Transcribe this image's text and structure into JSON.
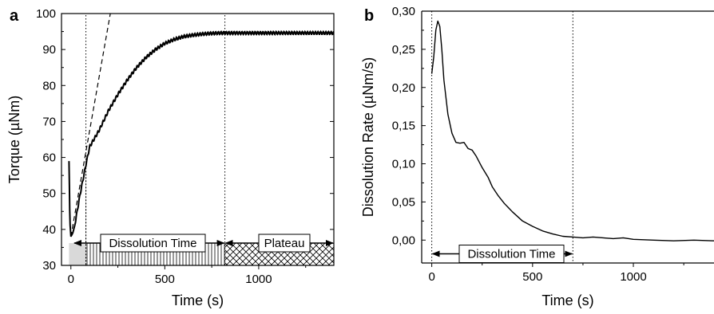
{
  "chart_data": [
    {
      "panel": "a",
      "type": "line",
      "xlabel": "Time (s)",
      "ylabel": "Torque (µNm)",
      "xlim": [
        -50,
        1400
      ],
      "ylim": [
        30,
        100
      ],
      "xticks": [
        0,
        500,
        1000
      ],
      "xtick_labels": [
        "0",
        "500",
        "1000"
      ],
      "yticks": [
        30,
        40,
        50,
        60,
        70,
        80,
        90,
        100
      ],
      "ytick_labels": [
        "30",
        "40",
        "50",
        "60",
        "70",
        "80",
        "90",
        "100"
      ],
      "series": [
        {
          "style": "solid",
          "x": [
            -10,
            -5,
            0,
            10,
            20,
            50,
            80,
            100,
            150,
            200,
            250,
            300,
            350,
            400,
            450,
            500,
            550,
            600,
            650,
            700,
            750,
            800,
            850,
            900,
            1000,
            1100,
            1200,
            1300,
            1400
          ],
          "y": [
            59,
            42,
            38,
            39,
            41,
            50,
            58,
            63,
            67.5,
            73,
            77.5,
            81.5,
            85,
            87.8,
            90,
            91.7,
            92.8,
            93.6,
            94,
            94.3,
            94.5,
            94.6,
            94.6,
            94.6,
            94.6,
            94.6,
            94.6,
            94.6,
            94.6
          ],
          "oscillation_amplitude": 0.4
        },
        {
          "style": "dashed",
          "x": [
            0,
            210
          ],
          "y": [
            38,
            100
          ]
        }
      ],
      "vlines": [
        80,
        820
      ],
      "annotations": [
        {
          "text": "Dissolution Time",
          "from": 0,
          "to": 820
        },
        {
          "text": "Plateau",
          "from": 820,
          "to": 1400
        }
      ]
    },
    {
      "panel": "b",
      "type": "line",
      "xlabel": "Time (s)",
      "ylabel": "Dissolution Rate (µNm/s)",
      "xlim": [
        -50,
        1400
      ],
      "ylim": [
        -0.03,
        0.3
      ],
      "xticks": [
        0,
        500,
        1000
      ],
      "xtick_labels": [
        "0",
        "500",
        "1000"
      ],
      "yticks": [
        0,
        0.05,
        0.1,
        0.15,
        0.2,
        0.25,
        0.3
      ],
      "ytick_labels": [
        "0,00",
        "0,05",
        "0,10",
        "0,15",
        "0,20",
        "0,25",
        "0,30"
      ],
      "series": [
        {
          "style": "solid",
          "x": [
            0,
            10,
            20,
            30,
            40,
            50,
            60,
            80,
            100,
            120,
            140,
            160,
            180,
            200,
            220,
            250,
            280,
            300,
            330,
            360,
            400,
            450,
            500,
            550,
            600,
            650,
            700,
            750,
            800,
            850,
            900,
            950,
            1000,
            1100,
            1200,
            1300,
            1400
          ],
          "y": [
            0.218,
            0.24,
            0.275,
            0.287,
            0.28,
            0.25,
            0.21,
            0.165,
            0.14,
            0.128,
            0.127,
            0.128,
            0.12,
            0.118,
            0.11,
            0.095,
            0.082,
            0.07,
            0.058,
            0.048,
            0.037,
            0.025,
            0.018,
            0.012,
            0.008,
            0.005,
            0.004,
            0.003,
            0.004,
            0.003,
            0.002,
            0.003,
            0.001,
            0.0,
            -0.001,
            0.0,
            -0.001
          ]
        }
      ],
      "vlines": [
        0,
        700
      ],
      "annotations": [
        {
          "text": "Dissolution Time",
          "from": 0,
          "to": 700
        }
      ]
    }
  ],
  "panels": {
    "a": {
      "letter": "a"
    },
    "b": {
      "letter": "b"
    }
  }
}
